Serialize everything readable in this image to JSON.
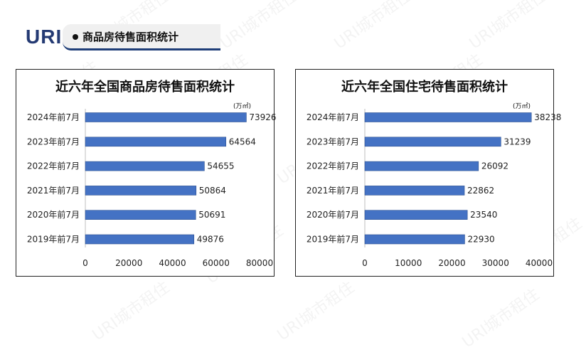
{
  "header": {
    "logo": "URI",
    "section_title": "商品房待售面积统计"
  },
  "watermark": "URI城市租住",
  "chart_data": [
    {
      "type": "bar",
      "orientation": "horizontal",
      "title": "近六年全国商品房待售面积统计",
      "unit": "(万㎡)",
      "categories": [
        "2024年前7月",
        "2023年前7月",
        "2022年前7月",
        "2021年前7月",
        "2020年前7月",
        "2019年前7月"
      ],
      "values": [
        73926,
        64564,
        54655,
        50864,
        50691,
        49876
      ],
      "xlim": [
        0,
        80000
      ],
      "ticks": [
        "0",
        "20000",
        "40000",
        "60000",
        "80000"
      ],
      "bar_color": "#4472c4",
      "grid": false,
      "legend": "none"
    },
    {
      "type": "bar",
      "orientation": "horizontal",
      "title": "近六年全国住宅待售面积统计",
      "unit": "(万㎡)",
      "categories": [
        "2024年前7月",
        "2023年前7月",
        "2022年前7月",
        "2021年前7月",
        "2020年前7月",
        "2019年前7月"
      ],
      "values": [
        38238,
        31239,
        26092,
        22862,
        23540,
        22930
      ],
      "xlim": [
        0,
        40000
      ],
      "ticks": [
        "0",
        "10000",
        "20000",
        "30000",
        "40000"
      ],
      "bar_color": "#4472c4",
      "grid": false,
      "legend": "none"
    }
  ]
}
